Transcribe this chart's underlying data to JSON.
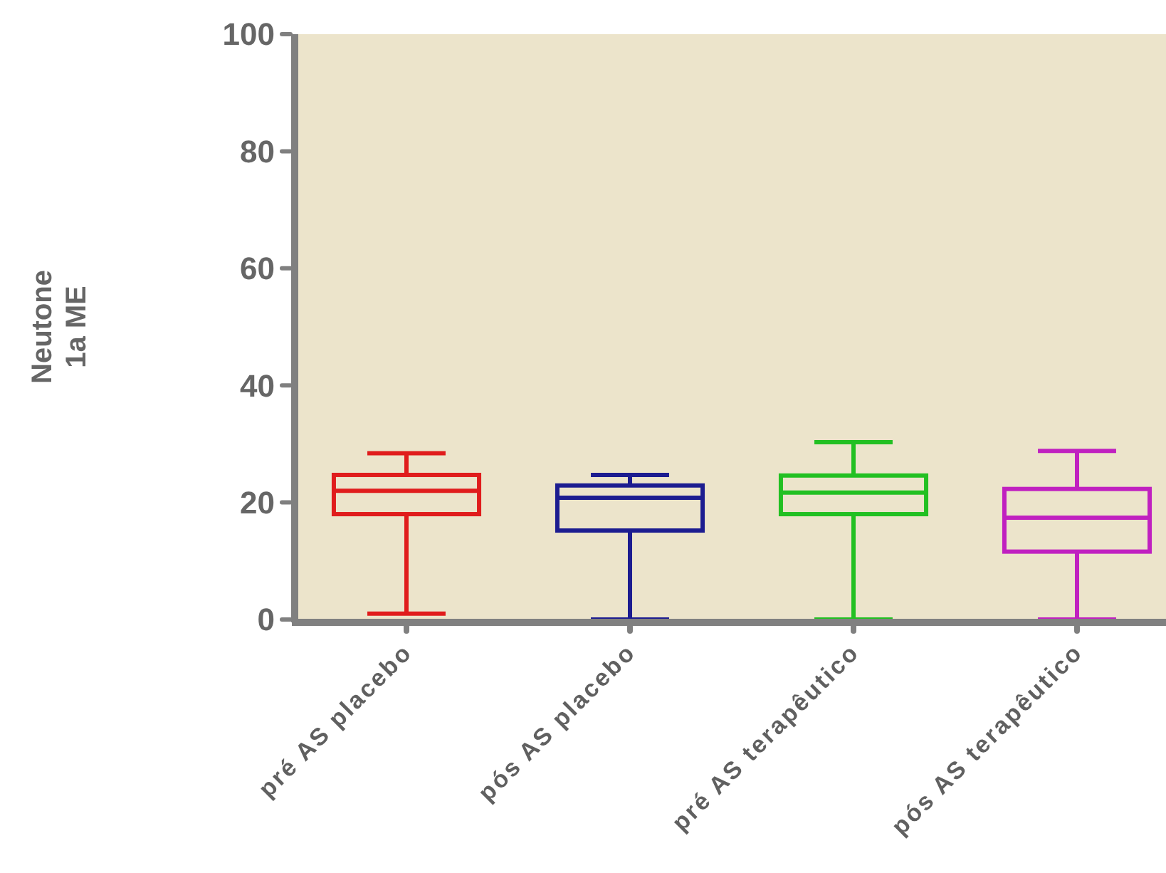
{
  "chart_data": {
    "type": "box",
    "ylabel": "Neutone\n1a ME",
    "categories": [
      "pré AS placebo",
      "pós AS placebo",
      "pré AS terapêutico",
      "pós AS terapêutico"
    ],
    "boxes": [
      {
        "low": 1,
        "q1": 18,
        "median": 22,
        "q3": 24.7,
        "high": 28.4
      },
      {
        "low": 0,
        "q1": 15.2,
        "median": 20.8,
        "q3": 22.9,
        "high": 24.7
      },
      {
        "low": 0,
        "q1": 18,
        "median": 21.7,
        "q3": 24.6,
        "high": 30.3
      },
      {
        "low": 0,
        "q1": 11.6,
        "median": 17.4,
        "q3": 22.3,
        "high": 28.8
      }
    ],
    "colors": [
      "#e01c1c",
      "#1c1c90",
      "#22c022",
      "#c020c0"
    ],
    "ylim": [
      0,
      100
    ],
    "yticks": [
      0,
      20,
      40,
      60,
      80,
      100
    ],
    "grid": false
  }
}
